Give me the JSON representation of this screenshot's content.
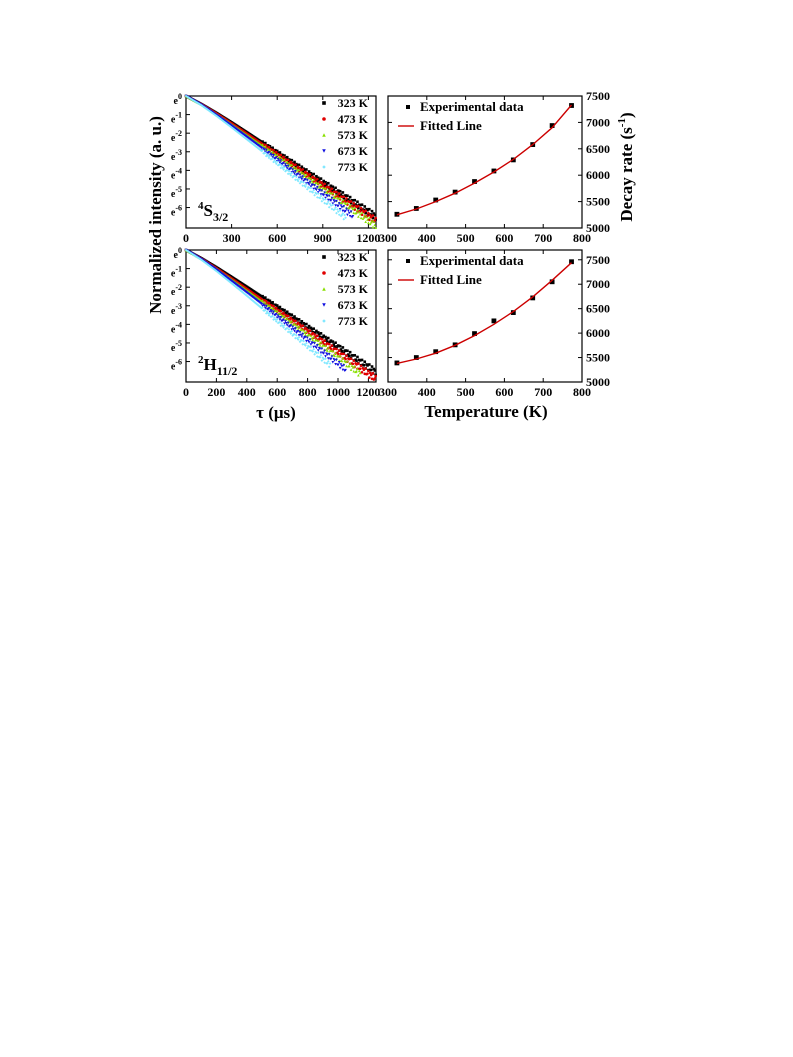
{
  "figure": {
    "left_ylabel": "Normalized intensity (a. u.)",
    "right_ylabel_main": "Decay rate (s",
    "right_ylabel_sup": "-1",
    "right_ylabel_end": ")",
    "left_xlabel": "τ (μs)",
    "right_xlabel": "Temperature (K)"
  },
  "chart_data": [
    {
      "id": "decay-4S32",
      "type": "scatter",
      "panel_label": {
        "prefix_sup": "4",
        "main": "S",
        "sub": "3/2"
      },
      "x_ticks": [
        0,
        300,
        600,
        900,
        1200
      ],
      "xlim": [
        0,
        1250
      ],
      "y_scale": "log",
      "y_ticks": [
        {
          "base": "e",
          "exp": "0"
        },
        {
          "base": "e",
          "exp": "-1"
        },
        {
          "base": "e",
          "exp": "-2"
        },
        {
          "base": "e",
          "exp": "-3"
        },
        {
          "base": "e",
          "exp": "-4"
        },
        {
          "base": "e",
          "exp": "-5"
        },
        {
          "base": "e",
          "exp": "-6"
        }
      ],
      "ylim_ln": [
        -7.1,
        0
      ],
      "legend_position": "top-right",
      "series": [
        {
          "name": "323 K",
          "color": "#000000",
          "marker": "square",
          "x": [
            0,
            100,
            200,
            300,
            400,
            500,
            600,
            700,
            800,
            900,
            1000,
            1100,
            1200,
            1250
          ],
          "ln_y": [
            0,
            -0.43,
            -0.91,
            -1.42,
            -1.95,
            -2.49,
            -3.03,
            -3.57,
            -4.11,
            -4.64,
            -5.17,
            -5.7,
            -6.23,
            -6.49
          ]
        },
        {
          "name": "473 K",
          "color": "#e00000",
          "marker": "circle",
          "x": [
            0,
            100,
            200,
            300,
            400,
            500,
            600,
            700,
            800,
            900,
            1000,
            1100,
            1200,
            1250
          ],
          "ln_y": [
            0,
            -0.44,
            -0.94,
            -1.47,
            -2.02,
            -2.57,
            -3.13,
            -3.69,
            -4.25,
            -4.8,
            -5.35,
            -5.9,
            -6.45,
            -6.72
          ]
        },
        {
          "name": "573 K",
          "color": "#88e000",
          "marker": "triangle-up",
          "x": [
            0,
            100,
            200,
            300,
            400,
            500,
            600,
            700,
            800,
            900,
            1000,
            1100,
            1200,
            1250
          ],
          "ln_y": [
            0,
            -0.45,
            -0.97,
            -1.52,
            -2.09,
            -2.66,
            -3.24,
            -3.82,
            -4.4,
            -4.98,
            -5.55,
            -6.12,
            -6.69,
            -6.97
          ]
        },
        {
          "name": "673 K",
          "color": "#1010e0",
          "marker": "triangle-down",
          "x": [
            0,
            100,
            200,
            300,
            400,
            500,
            600,
            700,
            800,
            900,
            1000,
            1100
          ],
          "ln_y": [
            0,
            -0.47,
            -1.02,
            -1.6,
            -2.2,
            -2.81,
            -3.42,
            -4.03,
            -4.64,
            -5.25,
            -5.86,
            -6.47
          ]
        },
        {
          "name": "773 K",
          "color": "#80e8ff",
          "marker": "diamond",
          "x": [
            0,
            100,
            200,
            300,
            400,
            500,
            600,
            700,
            800,
            900,
            1000,
            1050
          ],
          "ln_y": [
            0,
            -0.49,
            -1.07,
            -1.69,
            -2.33,
            -2.97,
            -3.62,
            -4.27,
            -4.92,
            -5.57,
            -6.22,
            -6.55
          ]
        }
      ]
    },
    {
      "id": "decay-2H112",
      "type": "scatter",
      "panel_label": {
        "prefix_sup": "2",
        "main": "H",
        "sub": "11/2"
      },
      "x_ticks": [
        0,
        200,
        400,
        600,
        800,
        1000,
        1200
      ],
      "xlim": [
        0,
        1250
      ],
      "y_scale": "log",
      "y_ticks": [
        {
          "base": "e",
          "exp": "0"
        },
        {
          "base": "e",
          "exp": "-1"
        },
        {
          "base": "e",
          "exp": "-2"
        },
        {
          "base": "e",
          "exp": "-3"
        },
        {
          "base": "e",
          "exp": "-4"
        },
        {
          "base": "e",
          "exp": "-5"
        },
        {
          "base": "e",
          "exp": "-6"
        }
      ],
      "ylim_ln": [
        -7.1,
        0
      ],
      "legend_position": "top-right",
      "series": [
        {
          "name": "323 K",
          "color": "#000000",
          "marker": "square",
          "x": [
            0,
            100,
            200,
            300,
            400,
            500,
            600,
            700,
            800,
            900,
            1000,
            1100,
            1200,
            1250
          ],
          "ln_y": [
            0,
            -0.44,
            -0.93,
            -1.45,
            -1.98,
            -2.52,
            -3.06,
            -3.6,
            -4.14,
            -4.68,
            -5.22,
            -5.76,
            -6.3,
            -6.57
          ]
        },
        {
          "name": "473 K",
          "color": "#e00000",
          "marker": "circle",
          "x": [
            0,
            100,
            200,
            300,
            400,
            500,
            600,
            700,
            800,
            900,
            1000,
            1100,
            1200,
            1250
          ],
          "ln_y": [
            0,
            -0.46,
            -0.98,
            -1.53,
            -2.09,
            -2.66,
            -3.23,
            -3.8,
            -4.37,
            -4.94,
            -5.51,
            -6.08,
            -6.65,
            -6.93
          ]
        },
        {
          "name": "573 K",
          "color": "#88e000",
          "marker": "triangle-up",
          "x": [
            0,
            100,
            200,
            300,
            400,
            500,
            600,
            700,
            800,
            900,
            1000,
            1100,
            1150
          ],
          "ln_y": [
            0,
            -0.47,
            -1.01,
            -1.58,
            -2.17,
            -2.76,
            -3.36,
            -3.96,
            -4.56,
            -5.16,
            -5.76,
            -6.36,
            -6.66
          ]
        },
        {
          "name": "673 K",
          "color": "#1010e0",
          "marker": "triangle-down",
          "x": [
            0,
            100,
            200,
            300,
            400,
            500,
            600,
            700,
            800,
            900,
            1000,
            1050
          ],
          "ln_y": [
            0,
            -0.49,
            -1.06,
            -1.67,
            -2.29,
            -2.92,
            -3.56,
            -4.2,
            -4.84,
            -5.48,
            -6.12,
            -6.44
          ]
        },
        {
          "name": "773 K",
          "color": "#80e8ff",
          "marker": "diamond",
          "x": [
            0,
            100,
            200,
            300,
            400,
            500,
            600,
            700,
            800,
            900,
            950
          ],
          "ln_y": [
            0,
            -0.52,
            -1.13,
            -1.79,
            -2.46,
            -3.14,
            -3.82,
            -4.5,
            -5.18,
            -5.86,
            -6.2
          ]
        }
      ]
    },
    {
      "id": "rate-4S32",
      "type": "scatter",
      "x_ticks": [
        300,
        400,
        500,
        600,
        700,
        800
      ],
      "xlim": [
        300,
        800
      ],
      "y_ticks": [
        5000,
        5500,
        6000,
        6500,
        7000,
        7500
      ],
      "ylim": [
        5000,
        7500
      ],
      "legend_position": "top-left",
      "series": [
        {
          "name": "Experimental data",
          "color": "#000000",
          "marker": "square",
          "x": [
            323,
            373,
            423,
            473,
            523,
            573,
            623,
            673,
            723,
            773
          ],
          "y": [
            5260,
            5370,
            5530,
            5680,
            5880,
            6080,
            6290,
            6580,
            6940,
            7320
          ]
        },
        {
          "name": "Fitted Line",
          "color": "#cc0000",
          "marker": "line",
          "x": [
            323,
            373,
            423,
            473,
            523,
            573,
            623,
            673,
            723,
            773
          ],
          "y": [
            5250,
            5360,
            5500,
            5660,
            5850,
            6060,
            6300,
            6580,
            6900,
            7330
          ]
        }
      ]
    },
    {
      "id": "rate-2H112",
      "type": "scatter",
      "x_ticks": [
        300,
        400,
        500,
        600,
        700,
        800
      ],
      "xlim": [
        300,
        800
      ],
      "y_ticks": [
        5000,
        5500,
        6000,
        6500,
        7000,
        7500
      ],
      "ylim": [
        5000,
        7700
      ],
      "legend_position": "top-left",
      "series": [
        {
          "name": "Experimental data",
          "color": "#000000",
          "marker": "square",
          "x": [
            323,
            373,
            423,
            473,
            523,
            573,
            623,
            673,
            723,
            773
          ],
          "y": [
            5390,
            5500,
            5620,
            5760,
            5990,
            6250,
            6420,
            6720,
            7050,
            7460
          ]
        },
        {
          "name": "Fitted Line",
          "color": "#cc0000",
          "marker": "line",
          "x": [
            323,
            373,
            423,
            473,
            523,
            573,
            623,
            673,
            723,
            773
          ],
          "y": [
            5380,
            5470,
            5590,
            5750,
            5950,
            6180,
            6440,
            6740,
            7080,
            7440
          ]
        }
      ]
    }
  ]
}
